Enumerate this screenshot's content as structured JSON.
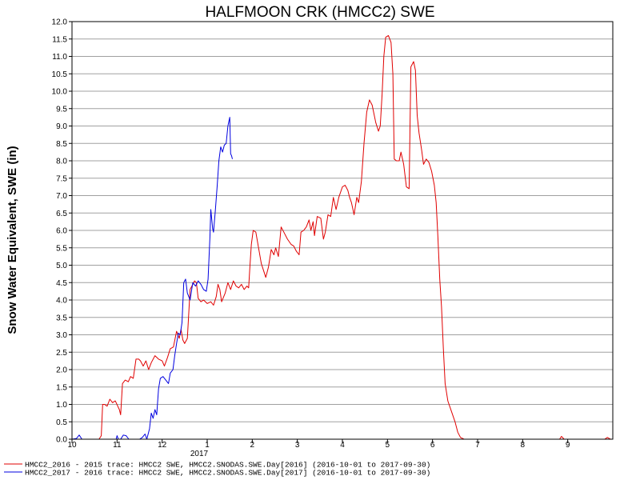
{
  "chart_data": {
    "type": "line",
    "title": "HALFMOON CRK (HMCC2) SWE",
    "ylabel": "Snow Water Equivalent, SWE (in)",
    "xlabel": "",
    "year_marker": "2017",
    "ylim": [
      0,
      12
    ],
    "xlim": [
      0,
      12
    ],
    "grid": true,
    "legend_position": "bottom-left",
    "yticks": [
      "0.0",
      "0.5",
      "1.0",
      "1.5",
      "2.0",
      "2.5",
      "3.0",
      "3.5",
      "4.0",
      "4.5",
      "5.0",
      "5.5",
      "6.0",
      "6.5",
      "7.0",
      "7.5",
      "8.0",
      "8.5",
      "9.0",
      "9.5",
      "10.0",
      "10.5",
      "11.0",
      "11.5",
      "12.0"
    ],
    "xticks": [
      {
        "x": 0,
        "label": "10"
      },
      {
        "x": 1,
        "label": "11"
      },
      {
        "x": 2,
        "label": "12"
      },
      {
        "x": 3,
        "label": "1"
      },
      {
        "x": 4,
        "label": "2"
      },
      {
        "x": 5,
        "label": "3"
      },
      {
        "x": 6,
        "label": "4"
      },
      {
        "x": 7,
        "label": "5"
      },
      {
        "x": 8,
        "label": "6"
      },
      {
        "x": 9,
        "label": "7"
      },
      {
        "x": 10,
        "label": "8"
      },
      {
        "x": 11,
        "label": "9"
      }
    ],
    "series": [
      {
        "name": "HMCC2_2016 - 2015 trace: HMCC2 SWE, HMCC2.SNODAS.SWE.Day[2016] (2016-10-01 to 2017-09-30)",
        "color": "#e00000",
        "points": [
          [
            0.0,
            0.0
          ],
          [
            0.6,
            0.0
          ],
          [
            0.65,
            0.1
          ],
          [
            0.68,
            1.0
          ],
          [
            0.72,
            1.0
          ],
          [
            0.78,
            0.95
          ],
          [
            0.84,
            1.15
          ],
          [
            0.9,
            1.05
          ],
          [
            0.96,
            1.1
          ],
          [
            1.05,
            0.85
          ],
          [
            1.08,
            0.7
          ],
          [
            1.12,
            1.6
          ],
          [
            1.18,
            1.7
          ],
          [
            1.25,
            1.65
          ],
          [
            1.3,
            1.8
          ],
          [
            1.36,
            1.75
          ],
          [
            1.42,
            2.3
          ],
          [
            1.48,
            2.3
          ],
          [
            1.52,
            2.25
          ],
          [
            1.58,
            2.1
          ],
          [
            1.64,
            2.25
          ],
          [
            1.7,
            2.0
          ],
          [
            1.76,
            2.2
          ],
          [
            1.84,
            2.4
          ],
          [
            1.92,
            2.3
          ],
          [
            2.0,
            2.25
          ],
          [
            2.05,
            2.1
          ],
          [
            2.12,
            2.35
          ],
          [
            2.18,
            2.6
          ],
          [
            2.25,
            2.65
          ],
          [
            2.32,
            3.1
          ],
          [
            2.38,
            2.9
          ],
          [
            2.42,
            3.15
          ],
          [
            2.46,
            2.85
          ],
          [
            2.5,
            2.75
          ],
          [
            2.56,
            2.9
          ],
          [
            2.62,
            4.3
          ],
          [
            2.66,
            4.4
          ],
          [
            2.72,
            4.55
          ],
          [
            2.76,
            4.5
          ],
          [
            2.8,
            4.05
          ],
          [
            2.86,
            3.95
          ],
          [
            2.92,
            4.0
          ],
          [
            3.0,
            3.9
          ],
          [
            3.08,
            3.95
          ],
          [
            3.14,
            3.85
          ],
          [
            3.2,
            4.1
          ],
          [
            3.24,
            4.45
          ],
          [
            3.28,
            4.3
          ],
          [
            3.32,
            3.95
          ],
          [
            3.4,
            4.2
          ],
          [
            3.46,
            4.5
          ],
          [
            3.52,
            4.3
          ],
          [
            3.58,
            4.55
          ],
          [
            3.64,
            4.4
          ],
          [
            3.7,
            4.35
          ],
          [
            3.76,
            4.45
          ],
          [
            3.82,
            4.3
          ],
          [
            3.88,
            4.4
          ],
          [
            3.92,
            4.35
          ],
          [
            3.95,
            5.0
          ],
          [
            3.98,
            5.6
          ],
          [
            4.02,
            6.0
          ],
          [
            4.08,
            5.95
          ],
          [
            4.14,
            5.5
          ],
          [
            4.2,
            5.05
          ],
          [
            4.3,
            4.65
          ],
          [
            4.36,
            4.95
          ],
          [
            4.42,
            5.45
          ],
          [
            4.48,
            5.3
          ],
          [
            4.52,
            5.5
          ],
          [
            4.58,
            5.25
          ],
          [
            4.64,
            6.1
          ],
          [
            4.7,
            5.95
          ],
          [
            4.78,
            5.75
          ],
          [
            4.86,
            5.6
          ],
          [
            4.92,
            5.55
          ],
          [
            4.98,
            5.4
          ],
          [
            5.04,
            5.3
          ],
          [
            5.08,
            5.95
          ],
          [
            5.14,
            6.0
          ],
          [
            5.2,
            6.1
          ],
          [
            5.26,
            6.3
          ],
          [
            5.3,
            6.0
          ],
          [
            5.35,
            6.25
          ],
          [
            5.38,
            5.85
          ],
          [
            5.44,
            6.4
          ],
          [
            5.52,
            6.35
          ],
          [
            5.58,
            5.75
          ],
          [
            5.62,
            5.95
          ],
          [
            5.68,
            6.45
          ],
          [
            5.74,
            6.4
          ],
          [
            5.8,
            6.95
          ],
          [
            5.86,
            6.6
          ],
          [
            5.92,
            6.95
          ],
          [
            6.0,
            7.25
          ],
          [
            6.06,
            7.3
          ],
          [
            6.12,
            7.15
          ],
          [
            6.16,
            6.95
          ],
          [
            6.2,
            6.8
          ],
          [
            6.26,
            6.45
          ],
          [
            6.32,
            6.95
          ],
          [
            6.36,
            6.8
          ],
          [
            6.42,
            7.4
          ],
          [
            6.48,
            8.5
          ],
          [
            6.54,
            9.4
          ],
          [
            6.6,
            9.75
          ],
          [
            6.66,
            9.6
          ],
          [
            6.74,
            9.1
          ],
          [
            6.8,
            8.85
          ],
          [
            6.84,
            9.0
          ],
          [
            6.88,
            9.9
          ],
          [
            6.92,
            11.0
          ],
          [
            6.96,
            11.55
          ],
          [
            7.02,
            11.6
          ],
          [
            7.08,
            11.4
          ],
          [
            7.12,
            10.5
          ],
          [
            7.15,
            8.05
          ],
          [
            7.2,
            8.0
          ],
          [
            7.26,
            8.0
          ],
          [
            7.3,
            8.25
          ],
          [
            7.36,
            7.9
          ],
          [
            7.42,
            7.25
          ],
          [
            7.48,
            7.2
          ],
          [
            7.52,
            10.7
          ],
          [
            7.58,
            10.85
          ],
          [
            7.62,
            10.6
          ],
          [
            7.66,
            9.3
          ],
          [
            7.7,
            8.8
          ],
          [
            7.76,
            8.3
          ],
          [
            7.8,
            7.9
          ],
          [
            7.86,
            8.05
          ],
          [
            7.92,
            7.95
          ],
          [
            7.98,
            7.7
          ],
          [
            8.04,
            7.3
          ],
          [
            8.08,
            6.8
          ],
          [
            8.12,
            5.8
          ],
          [
            8.16,
            4.6
          ],
          [
            8.2,
            3.8
          ],
          [
            8.24,
            2.6
          ],
          [
            8.28,
            1.6
          ],
          [
            8.34,
            1.1
          ],
          [
            8.42,
            0.8
          ],
          [
            8.5,
            0.5
          ],
          [
            8.56,
            0.2
          ],
          [
            8.62,
            0.05
          ],
          [
            8.7,
            0.0
          ],
          [
            10.82,
            0.0
          ],
          [
            10.86,
            0.08
          ],
          [
            10.92,
            0.0
          ],
          [
            11.82,
            0.0
          ],
          [
            11.88,
            0.05
          ],
          [
            11.95,
            0.0
          ]
        ]
      },
      {
        "name": "HMCC2_2017 - 2016 trace: HMCC2 SWE, HMCC2.SNODAS.SWE.Day[2017] (2016-10-01 to 2017-09-30)",
        "color": "#0000e0",
        "points": [
          [
            0.0,
            0.0
          ],
          [
            0.1,
            0.02
          ],
          [
            0.16,
            0.12
          ],
          [
            0.22,
            0.0
          ],
          [
            0.98,
            0.0
          ],
          [
            1.0,
            0.1
          ],
          [
            1.03,
            0.0
          ],
          [
            1.08,
            0.0
          ],
          [
            1.14,
            0.12
          ],
          [
            1.2,
            0.1
          ],
          [
            1.26,
            0.0
          ],
          [
            1.5,
            0.0
          ],
          [
            1.56,
            0.05
          ],
          [
            1.62,
            0.15
          ],
          [
            1.66,
            0.0
          ],
          [
            1.72,
            0.3
          ],
          [
            1.76,
            0.75
          ],
          [
            1.8,
            0.6
          ],
          [
            1.84,
            0.85
          ],
          [
            1.88,
            0.7
          ],
          [
            1.92,
            1.45
          ],
          [
            1.96,
            1.75
          ],
          [
            2.02,
            1.8
          ],
          [
            2.08,
            1.7
          ],
          [
            2.14,
            1.6
          ],
          [
            2.18,
            1.9
          ],
          [
            2.24,
            2.0
          ],
          [
            2.28,
            2.4
          ],
          [
            2.32,
            2.75
          ],
          [
            2.36,
            3.05
          ],
          [
            2.4,
            3.0
          ],
          [
            2.44,
            3.35
          ],
          [
            2.48,
            4.5
          ],
          [
            2.52,
            4.6
          ],
          [
            2.56,
            4.2
          ],
          [
            2.62,
            4.0
          ],
          [
            2.68,
            4.5
          ],
          [
            2.74,
            4.4
          ],
          [
            2.8,
            4.55
          ],
          [
            2.86,
            4.45
          ],
          [
            2.92,
            4.3
          ],
          [
            2.98,
            4.25
          ],
          [
            3.02,
            4.6
          ],
          [
            3.06,
            5.8
          ],
          [
            3.08,
            6.6
          ],
          [
            3.12,
            6.05
          ],
          [
            3.14,
            5.95
          ],
          [
            3.18,
            6.55
          ],
          [
            3.22,
            7.25
          ],
          [
            3.26,
            8.0
          ],
          [
            3.3,
            8.4
          ],
          [
            3.34,
            8.25
          ],
          [
            3.38,
            8.45
          ],
          [
            3.42,
            8.5
          ],
          [
            3.46,
            9.0
          ],
          [
            3.5,
            9.25
          ],
          [
            3.52,
            8.2
          ],
          [
            3.54,
            8.15
          ],
          [
            3.56,
            8.05
          ]
        ]
      }
    ]
  }
}
